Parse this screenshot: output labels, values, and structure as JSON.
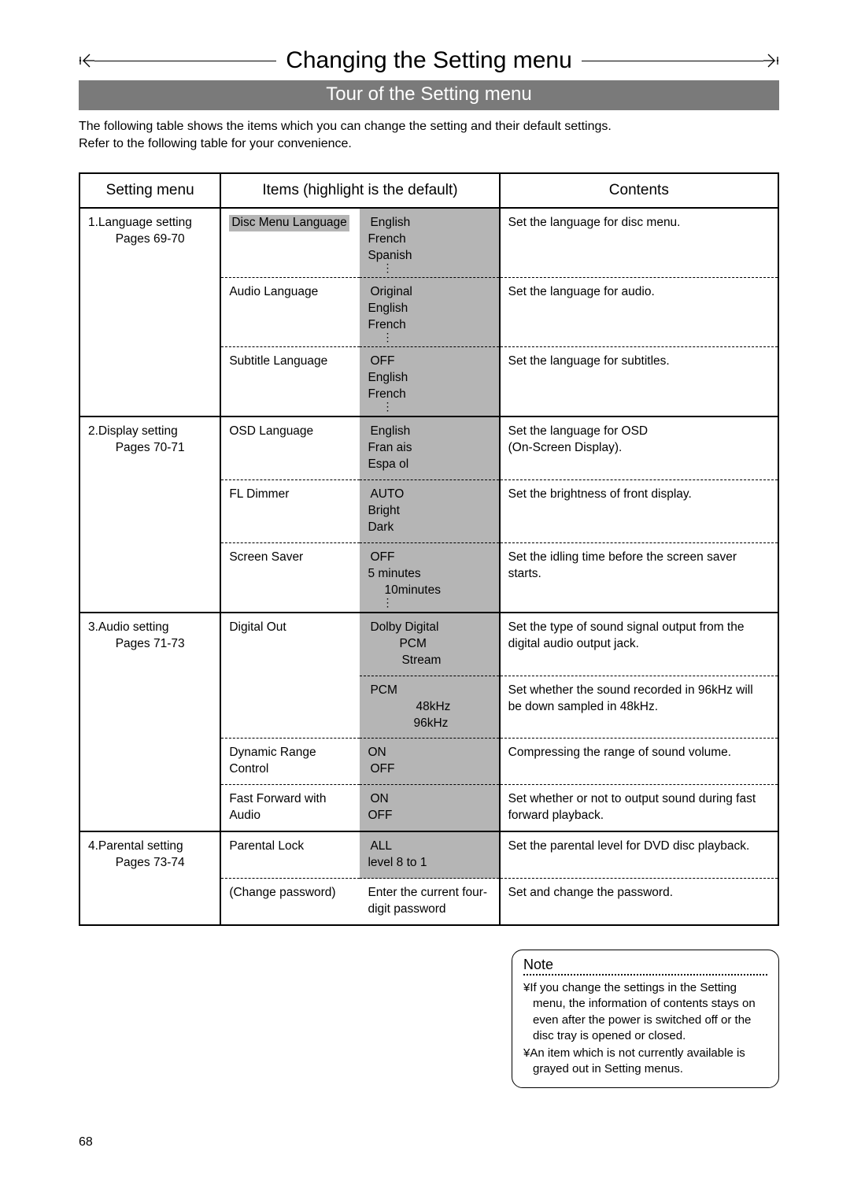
{
  "title": "Changing the Setting menu",
  "subtitle": "Tour of the Setting menu",
  "intro_line1": "The following table shows the items which you can change the setting and their default settings.",
  "intro_line2": "Refer to the following table for your convenience.",
  "headers": {
    "menu": "Setting menu",
    "items": "Items (highlight is the default)",
    "contents": "Contents"
  },
  "sections": [
    {
      "menu_title": "1.Language setting",
      "pages": "Pages 69-70",
      "rows": [
        {
          "item": "Disc Menu Language",
          "item_highlight": true,
          "values": [
            {
              "t": "English",
              "hl": true
            },
            {
              "t": "French",
              "hl": false
            },
            {
              "t": "Spanish",
              "hl": false
            }
          ],
          "vdots": true,
          "contents": "Set the language for disc menu.",
          "values_gray_bg": true
        },
        {
          "item": "Audio Language",
          "values": [
            {
              "t": "Original",
              "hl": true
            },
            {
              "t": "English",
              "hl": false
            },
            {
              "t": "French",
              "hl": false
            }
          ],
          "vdots": true,
          "contents": "Set the language for audio.",
          "values_gray_bg": true
        },
        {
          "item": "Subtitle Language",
          "values": [
            {
              "t": "OFF",
              "hl": true
            },
            {
              "t": "English",
              "hl": false
            },
            {
              "t": "French",
              "hl": false
            }
          ],
          "vdots": true,
          "contents": "Set the language for subtitles.",
          "values_gray_bg": true,
          "last": true
        }
      ]
    },
    {
      "menu_title": "2.Display setting",
      "pages": "Pages 70-71",
      "rows": [
        {
          "item": "OSD Language",
          "values": [
            {
              "t": "English",
              "hl": true
            },
            {
              "t": "Fran ais",
              "hl": false
            },
            {
              "t": "Espa ol",
              "hl": false
            }
          ],
          "contents": "Set the language for OSD\n(On-Screen Display).",
          "values_gray_bg": true
        },
        {
          "item": "FL Dimmer",
          "values": [
            {
              "t": "AUTO",
              "hl": true
            },
            {
              "t": "Bright",
              "hl": false
            },
            {
              "t": "Dark",
              "hl": false
            }
          ],
          "contents": "Set the brightness of front display.",
          "values_gray_bg": true
        },
        {
          "item": "Screen Saver",
          "values": [
            {
              "t": "OFF",
              "hl": true
            },
            {
              "t": "5 minutes",
              "hl": false
            },
            {
              "t": "10minutes",
              "hl": true,
              "indent": 1
            }
          ],
          "vdots": true,
          "contents": "Set the idling time before the screen saver starts.",
          "values_gray_bg": true,
          "last": true
        }
      ]
    },
    {
      "menu_title": "3.Audio setting",
      "pages": "Pages 71-73",
      "rows": [
        {
          "item": "Digital Out",
          "values": [
            {
              "t": "Dolby Digital",
              "hl": true
            },
            {
              "t": "PCM",
              "hl": false,
              "indent": 2
            },
            {
              "t": "Stream",
              "hl": true,
              "indent": 2
            }
          ],
          "contents": "Set the type of sound signal output from the digital audio output jack.",
          "values_gray_bg": true,
          "item_rowspan": 2
        },
        {
          "item": "",
          "nopad_item": true,
          "values": [
            {
              "t": "PCM",
              "hl": true
            },
            {
              "t": "48kHz",
              "hl": true,
              "indent": 3
            },
            {
              "t": "96kHz",
              "hl": false,
              "indent": 3
            }
          ],
          "contents": "Set whether the sound recorded in 96kHz will be down sampled in 48kHz.",
          "values_gray_bg": true
        },
        {
          "item": "Dynamic Range Control",
          "values": [
            {
              "t": "ON",
              "hl": false
            },
            {
              "t": "OFF",
              "hl": true
            }
          ],
          "contents": "Compressing the range of sound volume.",
          "values_gray_bg": true
        },
        {
          "item": "Fast Forward with Audio",
          "values": [
            {
              "t": "ON",
              "hl": true
            },
            {
              "t": "OFF",
              "hl": false
            }
          ],
          "contents": "Set whether or not to output sound during fast forward playback.",
          "values_gray_bg": true,
          "last": true
        }
      ]
    },
    {
      "menu_title": "4.Parental setting",
      "pages": "Pages 73-74",
      "rows": [
        {
          "item": "Parental Lock",
          "values": [
            {
              "t": "ALL",
              "hl": true
            },
            {
              "t": "level 8 to 1",
              "hl": false
            }
          ],
          "contents": "Set the parental level for DVD disc playback.",
          "values_gray_bg": true
        },
        {
          "item": "(Change password)",
          "values": [
            {
              "t": "Enter the current four-digit password",
              "hl": false
            }
          ],
          "contents": "Set and change the password.",
          "last": true
        }
      ]
    }
  ],
  "note": {
    "title": "Note",
    "items": [
      "¥If you change the settings in the Setting menu, the information of contents stays on even after the power is switched off or the disc tray is opened or closed.",
      "¥An item which is not currently available is grayed out in Setting menus."
    ]
  },
  "page_number": "68",
  "colors": {
    "highlight_bg": "#b5b5b5",
    "subtitle_bg": "#7a7a7a",
    "subtitle_fg": "#ffffff",
    "border": "#000000"
  }
}
